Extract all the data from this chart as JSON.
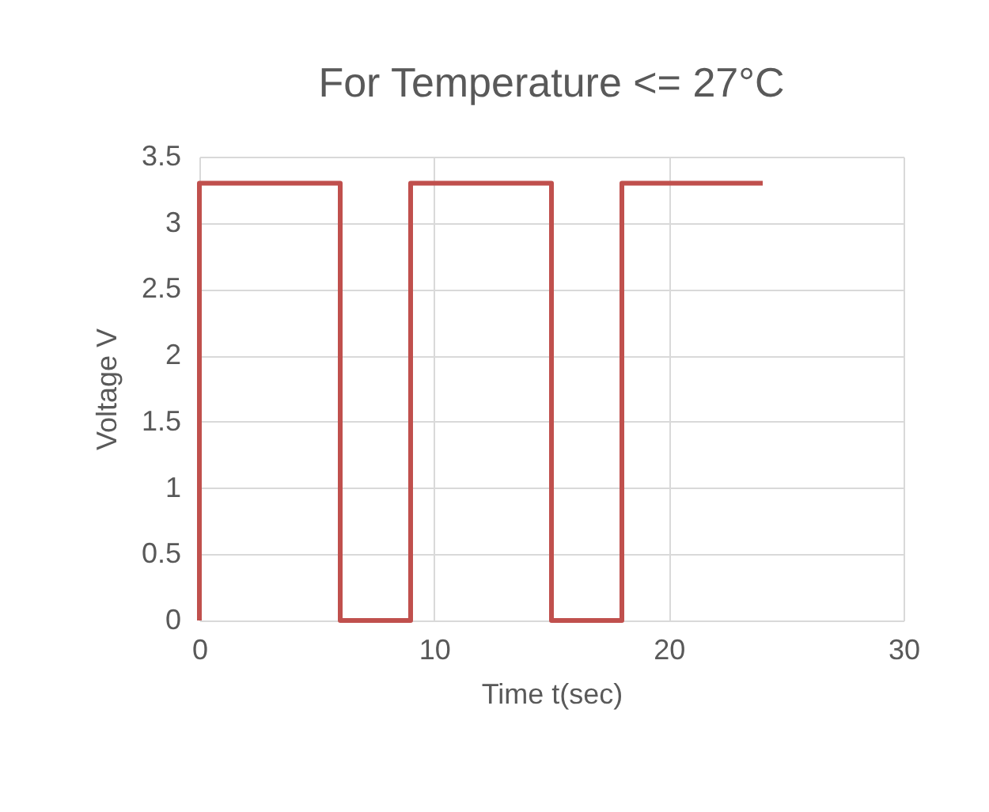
{
  "chart_data": {
    "type": "line",
    "title": "For Temperature <= 27°C",
    "xlabel": "Time t(sec)",
    "ylabel": "Voltage V",
    "x": [
      0,
      0,
      6,
      6,
      9,
      9,
      15,
      15,
      18,
      18,
      24
    ],
    "series": [
      {
        "color": "#c0504d",
        "values": [
          0,
          3.3,
          3.3,
          0,
          0,
          3.3,
          3.3,
          0,
          0,
          3.3,
          3.3
        ]
      }
    ],
    "xlim": [
      0,
      30
    ],
    "xticks": [
      0,
      10,
      20,
      30
    ],
    "ylim": [
      0,
      3.5
    ],
    "yticks": [
      0,
      0.5,
      1,
      1.5,
      2,
      2.5,
      3,
      3.5
    ],
    "grid": true,
    "marker": "none",
    "line_style": "solid"
  }
}
